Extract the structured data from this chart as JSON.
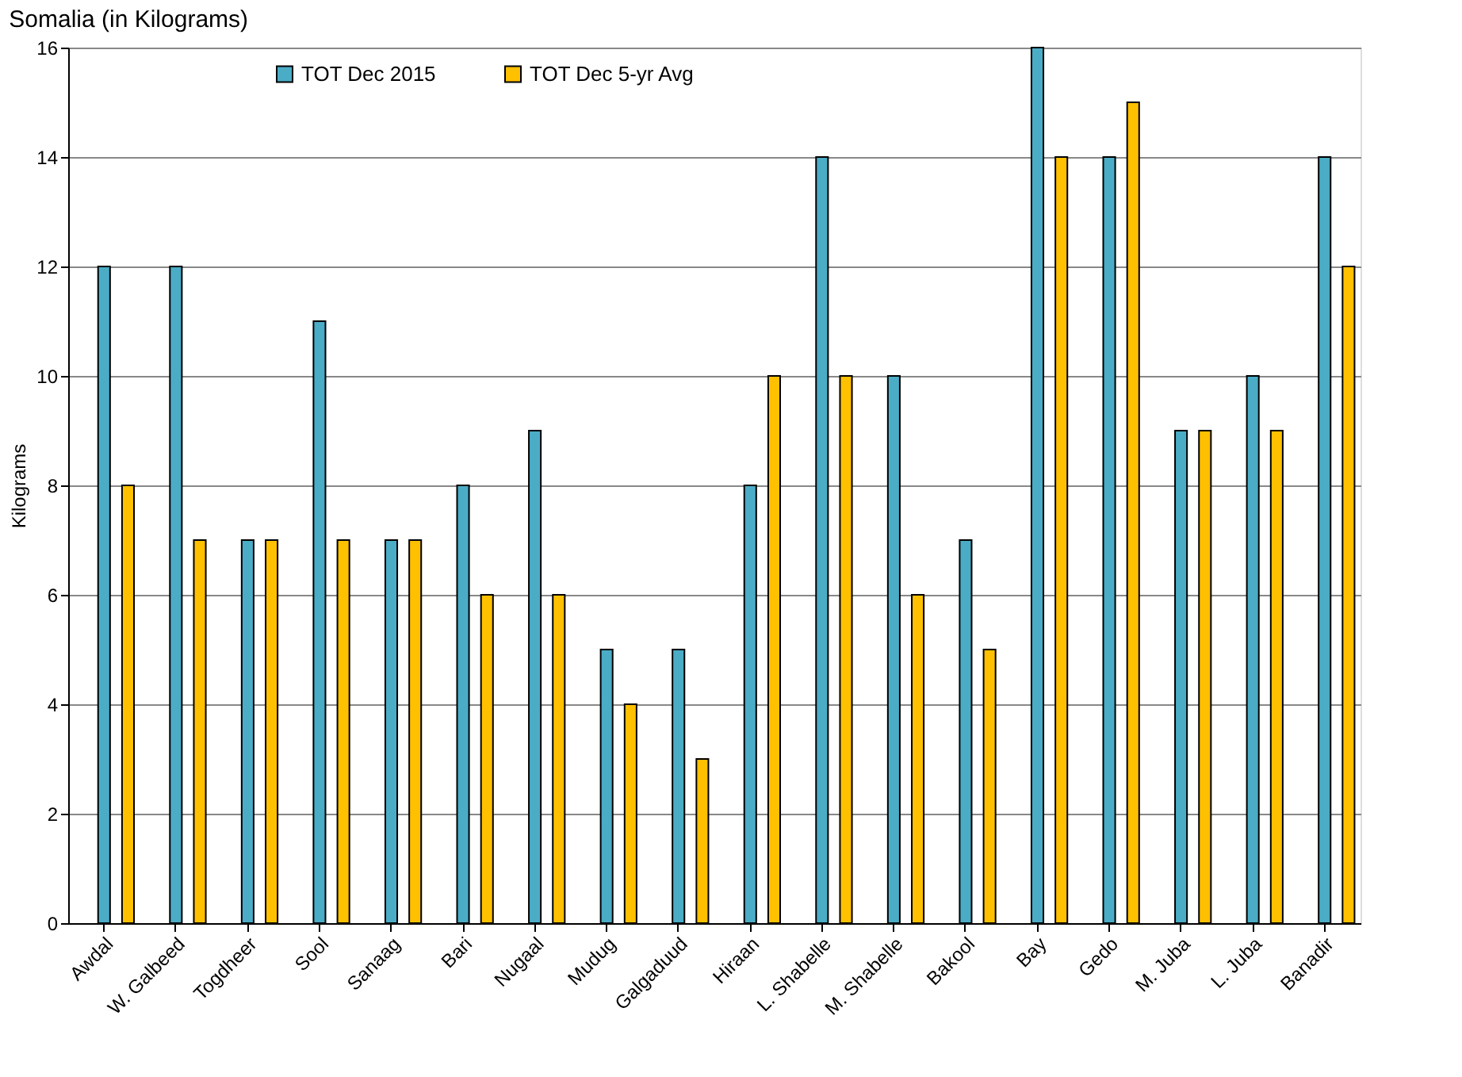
{
  "chart_data": {
    "type": "bar",
    "title": "Somalia (in Kilograms)",
    "ylabel": "Kilograms",
    "categories": [
      "Awdal",
      "W. Galbeed",
      "Togdheer",
      "Sool",
      "Sanaag",
      "Bari",
      "Nugaal",
      "Mudug",
      "Galgaduud",
      "Hiraan",
      "L. Shabelle",
      "M. Shabelle",
      "Bakool",
      "Bay",
      "Gedo",
      "M. Juba",
      "L. Juba",
      "Banadir"
    ],
    "series": [
      {
        "name": "TOT Dec 2015",
        "color": "#4bacc6",
        "values": [
          12,
          12,
          7,
          11,
          7,
          8,
          9,
          5,
          5,
          8,
          14,
          10,
          7,
          16,
          14,
          9,
          10,
          14
        ]
      },
      {
        "name": "TOT Dec 5-yr Avg",
        "color": "#ffc000",
        "values": [
          8,
          7,
          7,
          7,
          7,
          6,
          6,
          4,
          3,
          10,
          10,
          6,
          5,
          14,
          15,
          9,
          9,
          12
        ]
      }
    ],
    "ylim": [
      0,
      16
    ],
    "yticks": [
      0,
      2,
      4,
      6,
      8,
      10,
      12,
      14,
      16
    ],
    "grid": "y",
    "legend": "top left"
  }
}
